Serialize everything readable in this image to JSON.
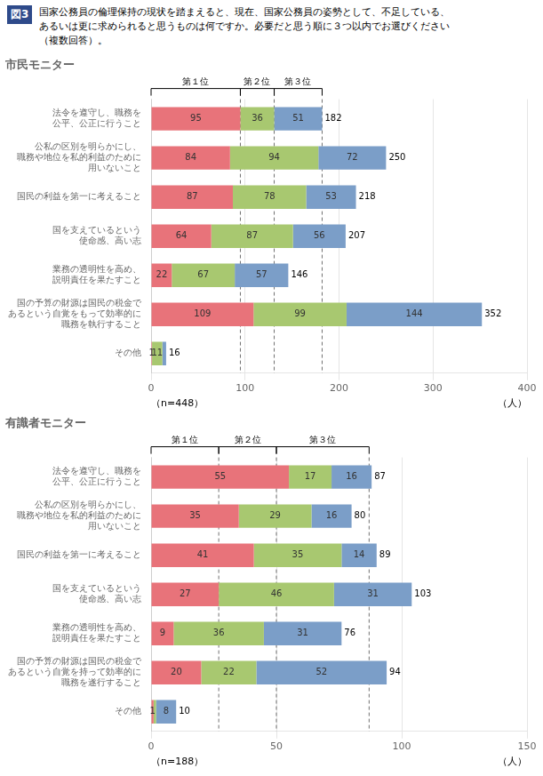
{
  "title": "図3",
  "subtitle": [
    "国家公務員の倫理保持の現状を踏まえると、現在、国家公務員の姿勢として、不足している、",
    "あるいは更に求められると思うものは何ですか。必要だと思う順に３つ以内でお選びください",
    "（複数回答）。"
  ],
  "chart_data": [
    {
      "type": "bar",
      "title": "市民モニター",
      "orientation": "horizontal",
      "stacked": true,
      "data_labels": true,
      "grid": true,
      "categories": [
        "法令を遵守し、職務を\n公平、公正に行うこと",
        "公私の区別を明らかにし、\n職務や地位を私的利益のために\n用いないこと",
        "国民の利益を第一に考えること",
        "国を支えているという\n使命感、高い志",
        "業務の透明性を高め、\n説明責任を果たすこと",
        "国の予算の財源は国民の税金で\nあるという自覚をもって効率的に\n職務を執行すること",
        "その他"
      ],
      "series": [
        {
          "color": "#E8737A",
          "values": [
            95,
            84,
            87,
            64,
            22,
            109,
            1
          ]
        },
        {
          "color": "#A8C870",
          "values": [
            36,
            94,
            78,
            87,
            67,
            99,
            11
          ]
        },
        {
          "color": "#7B9EC8",
          "values": [
            51,
            72,
            53,
            56,
            57,
            144,
            4
          ],
          "value_labels": [
            "51",
            "72",
            "53",
            "56",
            "57",
            "144",
            null
          ]
        }
      ],
      "totals": [
        182,
        250,
        218,
        207,
        146,
        352,
        16
      ],
      "xlim": [
        0,
        400
      ],
      "xticks": [
        0,
        100,
        200,
        300,
        400
      ],
      "xlabel": "（人）",
      "note": "（n=448）",
      "reference_lines": [
        95,
        131,
        182
      ],
      "annotations": [
        {
          "text": "第１位",
          "from": 0,
          "to": 95
        },
        {
          "text": "第２位",
          "from": 95,
          "to": 131
        },
        {
          "text": "第３位",
          "from": 131,
          "to": 182
        }
      ]
    },
    {
      "type": "bar",
      "title": "有識者モニター",
      "orientation": "horizontal",
      "stacked": true,
      "data_labels": true,
      "grid": true,
      "categories": [
        "法令を遵守し、職務を\n公平、公正に行うこと",
        "公私の区別を明らかにし、\n職務や地位を私的利益のために\n用いないこと",
        "国民の利益を第一に考えること",
        "国を支えているという\n使命感、高い志",
        "業務の透明性を高め、\n説明責任を果たすこと",
        "国の予算の財源は国民の税金で\nあるという自覚を持って効率的に\n職務を遂行すること",
        "その他"
      ],
      "series": [
        {
          "color": "#E8737A",
          "values": [
            55,
            35,
            41,
            27,
            9,
            20,
            1
          ]
        },
        {
          "color": "#A8C870",
          "values": [
            17,
            29,
            35,
            46,
            36,
            22,
            1
          ],
          "value_labels": [
            "17",
            "29",
            "35",
            "46",
            "36",
            "22",
            null
          ]
        },
        {
          "color": "#7B9EC8",
          "values": [
            16,
            16,
            14,
            31,
            31,
            52,
            8
          ]
        }
      ],
      "totals": [
        87,
        80,
        89,
        103,
        76,
        94,
        10
      ],
      "xlim": [
        0,
        150
      ],
      "xticks": [
        0,
        50,
        100,
        150
      ],
      "xlabel": "（人）",
      "note": "（n=188）",
      "reference_lines": [
        27,
        50,
        87
      ],
      "annotations": [
        {
          "text": "第１位",
          "from": 0,
          "to": 27
        },
        {
          "text": "第２位",
          "from": 27,
          "to": 50
        },
        {
          "text": "第３位",
          "from": 50,
          "to": 87
        }
      ]
    }
  ]
}
